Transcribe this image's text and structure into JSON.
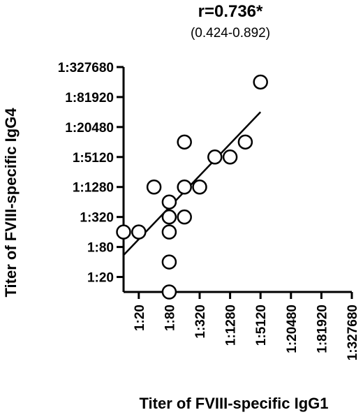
{
  "chart_data": {
    "type": "scatter",
    "title": "r=0.736*",
    "subtitle": "(0.424-0.892)",
    "xlabel": "Titer of FVIII-specific IgG1",
    "ylabel": "Titer of FVIII-specific IgG4",
    "x_scale": "log4",
    "y_scale": "log4",
    "x_ticks": [
      {
        "value": 20,
        "label": "1:20"
      },
      {
        "value": 80,
        "label": "1:80"
      },
      {
        "value": 320,
        "label": "1:320"
      },
      {
        "value": 1280,
        "label": "1:1280"
      },
      {
        "value": 5120,
        "label": "1:5120"
      },
      {
        "value": 20480,
        "label": "1:20480"
      },
      {
        "value": 81920,
        "label": "1:81920"
      },
      {
        "value": 327680,
        "label": "1:327680"
      }
    ],
    "y_ticks": [
      {
        "value": 20,
        "label": "1:20"
      },
      {
        "value": 80,
        "label": "1:80"
      },
      {
        "value": 320,
        "label": "1:320"
      },
      {
        "value": 1280,
        "label": "1:1280"
      },
      {
        "value": 5120,
        "label": "1:5120"
      },
      {
        "value": 20480,
        "label": "1:20480"
      },
      {
        "value": 81920,
        "label": "1:81920"
      },
      {
        "value": 327680,
        "label": "1:327680"
      }
    ],
    "xlim": [
      10,
      327680
    ],
    "ylim": [
      10,
      327680
    ],
    "points": [
      {
        "x": 10,
        "y": 160
      },
      {
        "x": 20,
        "y": 160
      },
      {
        "x": 40,
        "y": 1280
      },
      {
        "x": 80,
        "y": 10
      },
      {
        "x": 80,
        "y": 40
      },
      {
        "x": 80,
        "y": 160
      },
      {
        "x": 80,
        "y": 320
      },
      {
        "x": 80,
        "y": 640
      },
      {
        "x": 160,
        "y": 320
      },
      {
        "x": 160,
        "y": 1280
      },
      {
        "x": 160,
        "y": 10240
      },
      {
        "x": 320,
        "y": 1280
      },
      {
        "x": 640,
        "y": 5120
      },
      {
        "x": 1280,
        "y": 5120
      },
      {
        "x": 2560,
        "y": 10240
      },
      {
        "x": 5120,
        "y": 163840
      }
    ],
    "trend_line": {
      "x": [
        10,
        5120
      ],
      "y": [
        55,
        40960
      ]
    },
    "marker": "open-circle",
    "colors": {
      "ink": "#000000",
      "background": "#ffffff"
    }
  }
}
